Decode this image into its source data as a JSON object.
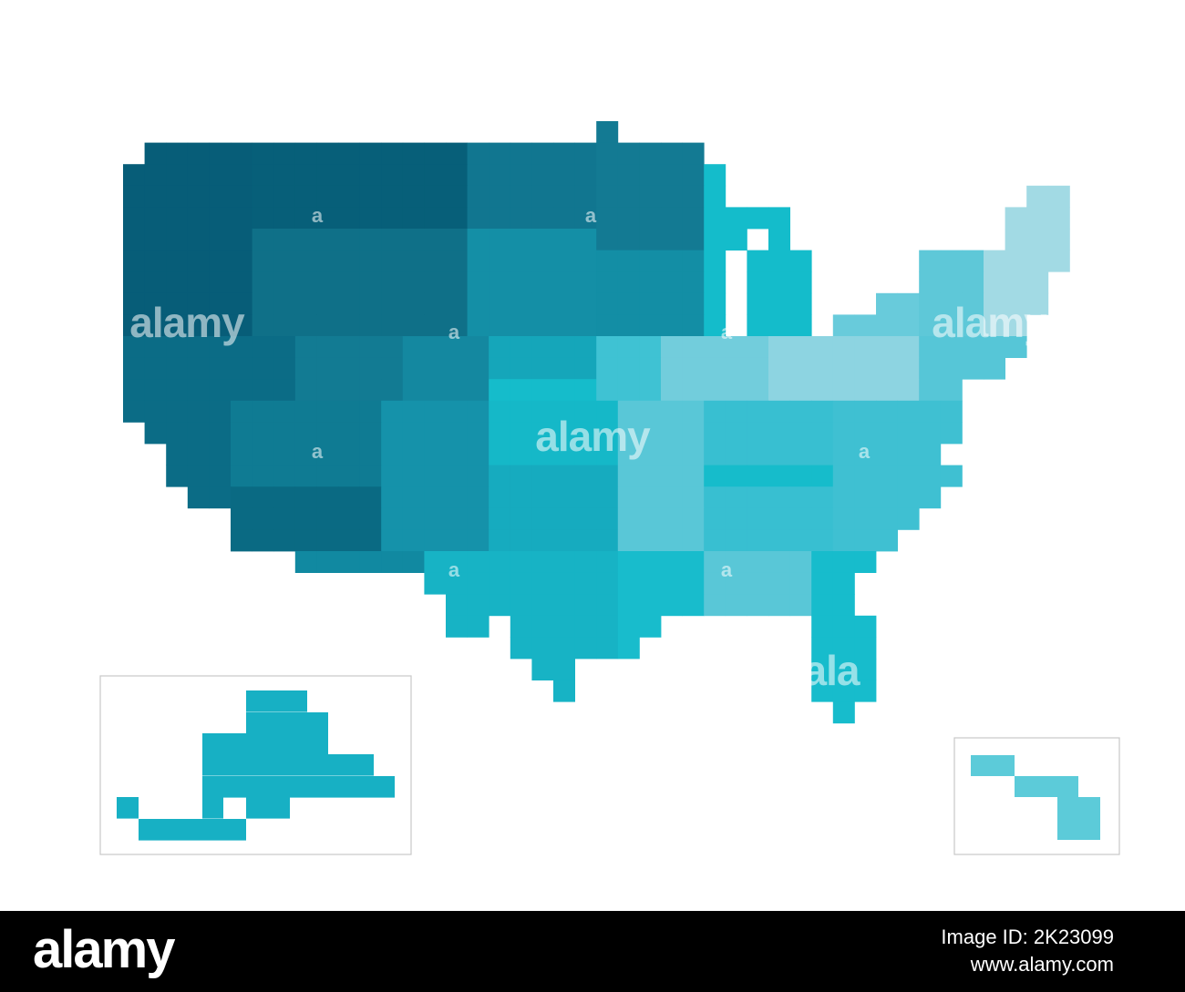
{
  "watermarks": [
    "alamy",
    "alamy",
    "alamy",
    "ala",
    "a",
    "a",
    "a",
    "a",
    "a",
    "a",
    "a",
    "a"
  ],
  "footer": {
    "logo": "alamy",
    "image_id": "Image ID: 2K23099",
    "url": "www.alamy.com"
  }
}
